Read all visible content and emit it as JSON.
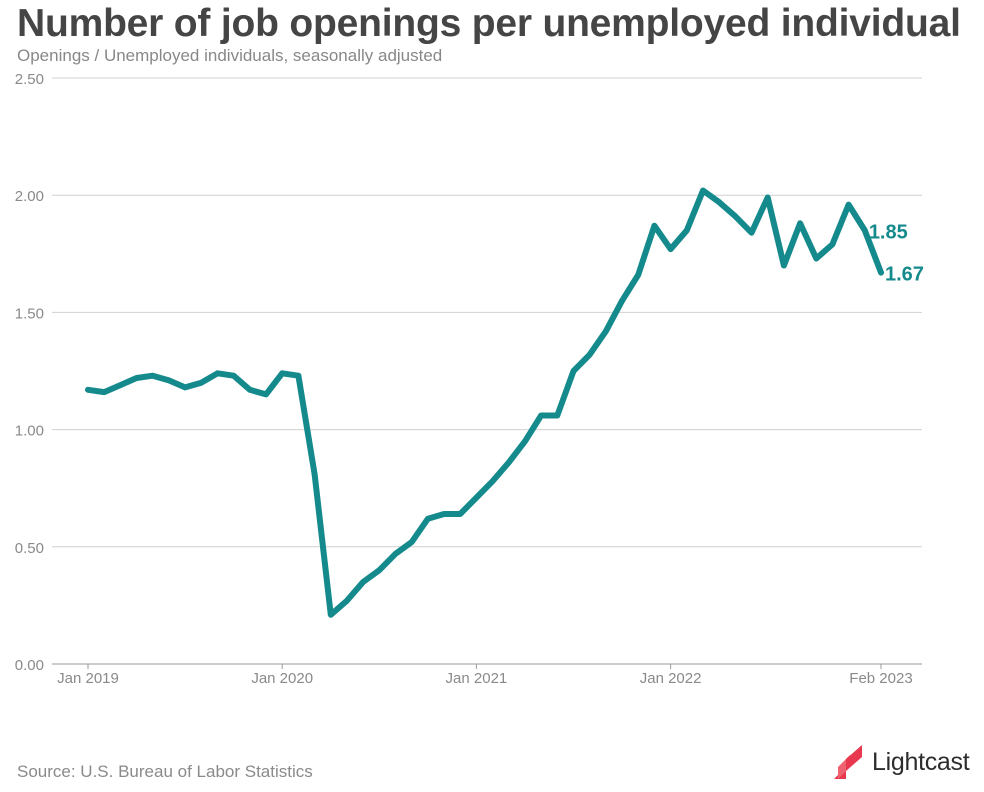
{
  "header": {
    "title": "Number of job openings per unemployed individual",
    "subtitle": "Openings / Unemployed individuals, seasonally adjusted"
  },
  "footer": {
    "source": "Source: U.S. Bureau of Labor Statistics",
    "brand": "Lightcast",
    "brand_colors": [
      "#e8384f",
      "#f0626f"
    ]
  },
  "chart_data": {
    "type": "line",
    "title": "Number of job openings per unemployed individual",
    "subtitle": "Openings / Unemployed individuals, seasonally adjusted",
    "xlabel": "",
    "ylabel": "",
    "ylim": [
      0,
      2.5
    ],
    "yticks": [
      {
        "value": 0,
        "label": "0.00"
      },
      {
        "value": 0.5,
        "label": "0.50"
      },
      {
        "value": 1,
        "label": "1.00"
      },
      {
        "value": 1.5,
        "label": "1.50"
      },
      {
        "value": 2,
        "label": "2.00"
      },
      {
        "value": 2.5,
        "label": "2.50"
      }
    ],
    "xticks": [
      {
        "index": 0,
        "label": "Jan 2019"
      },
      {
        "index": 12,
        "label": "Jan 2020"
      },
      {
        "index": 24,
        "label": "Jan 2021"
      },
      {
        "index": 36,
        "label": "Jan 2022"
      },
      {
        "index": 49,
        "label": "Feb 2023"
      }
    ],
    "grid": true,
    "line_color": "#158a8c",
    "series": [
      {
        "x": [
          "2019-01",
          "2019-02",
          "2019-03",
          "2019-04",
          "2019-05",
          "2019-06",
          "2019-07",
          "2019-08",
          "2019-09",
          "2019-10",
          "2019-11",
          "2019-12",
          "2020-01",
          "2020-02",
          "2020-03",
          "2020-04",
          "2020-05",
          "2020-06",
          "2020-07",
          "2020-08",
          "2020-09",
          "2020-10",
          "2020-11",
          "2020-12",
          "2021-01",
          "2021-02",
          "2021-03",
          "2021-04",
          "2021-05",
          "2021-06",
          "2021-07",
          "2021-08",
          "2021-09",
          "2021-10",
          "2021-11",
          "2021-12",
          "2022-01",
          "2022-02",
          "2022-03",
          "2022-04",
          "2022-05",
          "2022-06",
          "2022-07",
          "2022-08",
          "2022-09",
          "2022-10",
          "2022-11",
          "2022-12",
          "2023-01",
          "2023-02"
        ],
        "values": [
          1.17,
          1.16,
          1.19,
          1.22,
          1.23,
          1.21,
          1.18,
          1.2,
          1.24,
          1.23,
          1.17,
          1.15,
          1.24,
          1.23,
          0.81,
          0.21,
          0.27,
          0.35,
          0.4,
          0.47,
          0.52,
          0.62,
          0.64,
          0.64,
          0.71,
          0.78,
          0.86,
          0.95,
          1.06,
          1.06,
          1.25,
          1.32,
          1.42,
          1.55,
          1.66,
          1.87,
          1.77,
          1.85,
          2.02,
          1.97,
          1.91,
          1.84,
          1.99,
          1.7,
          1.88,
          1.73,
          1.79,
          1.96,
          1.85,
          1.67
        ]
      }
    ],
    "annotations": [
      {
        "index": 48,
        "label": "1.85"
      },
      {
        "index": 49,
        "label": "1.67"
      }
    ]
  }
}
